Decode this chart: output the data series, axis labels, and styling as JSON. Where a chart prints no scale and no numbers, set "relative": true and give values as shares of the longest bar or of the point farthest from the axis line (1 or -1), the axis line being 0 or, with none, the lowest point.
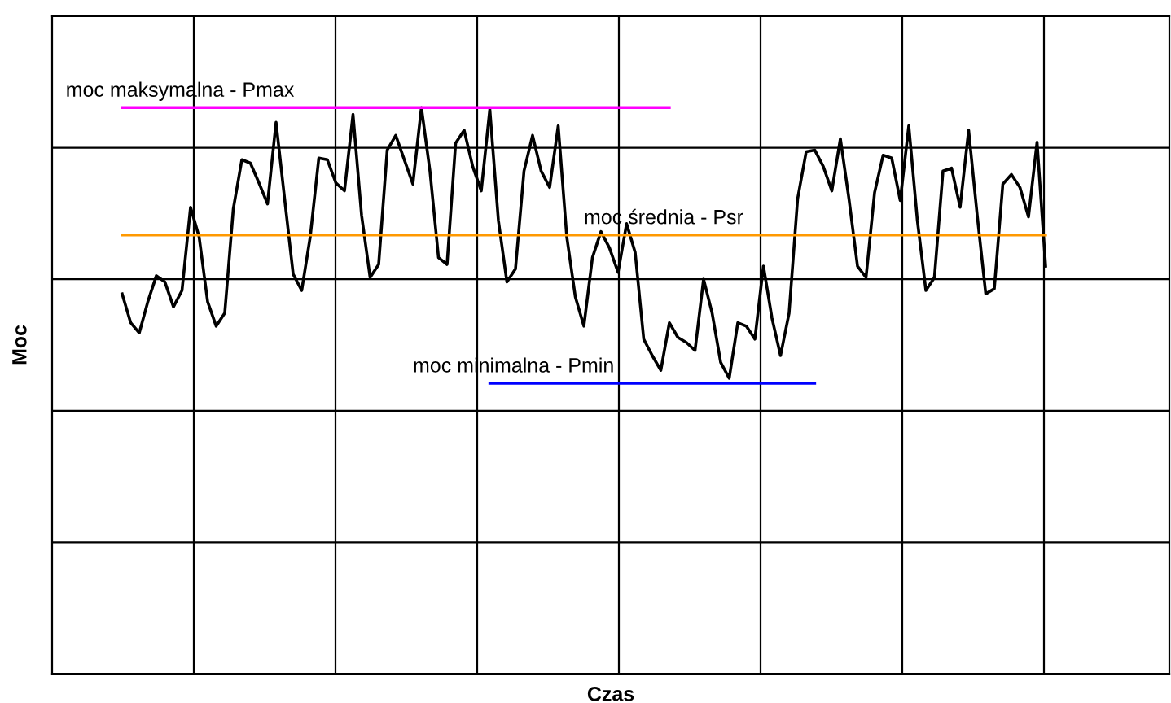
{
  "chart_data": {
    "type": "line",
    "relative": true,
    "xlabel": "Czas",
    "ylabel": "Moc",
    "grid": true,
    "categories": [
      null,
      null,
      null,
      null,
      null,
      null,
      null,
      null,
      null,
      null,
      null,
      null,
      null,
      null,
      null,
      null,
      null,
      null,
      null,
      null,
      null,
      null,
      null,
      null,
      null,
      null,
      null,
      null,
      null,
      null,
      null,
      null,
      null,
      null,
      null,
      null,
      null,
      null,
      null,
      null,
      null,
      null,
      null,
      null,
      null,
      null,
      null,
      null,
      null,
      null,
      null,
      null,
      null,
      null,
      null,
      null,
      null,
      null,
      null,
      null,
      null,
      null,
      null,
      null,
      null,
      null,
      null,
      null,
      null,
      null,
      null,
      null,
      null,
      null,
      null,
      null,
      null,
      null,
      null,
      null,
      null,
      null,
      null,
      null,
      null,
      null,
      null,
      null,
      null,
      null,
      null,
      null,
      null,
      null,
      null,
      null,
      null,
      null,
      null,
      null,
      null,
      null,
      null,
      null,
      null,
      null,
      null,
      null,
      null
    ],
    "series": [
      {
        "color": "#000000",
        "values": [
          0.671,
          0.62,
          0.602,
          0.657,
          0.703,
          0.692,
          0.648,
          0.677,
          0.824,
          0.772,
          0.657,
          0.614,
          0.637,
          0.821,
          0.908,
          0.902,
          0.867,
          0.83,
          0.974,
          0.839,
          0.706,
          0.677,
          0.772,
          0.911,
          0.908,
          0.867,
          0.853,
          0.988,
          0.81,
          0.7,
          0.723,
          0.925,
          0.951,
          0.908,
          0.865,
          1.0,
          0.888,
          0.735,
          0.723,
          0.937,
          0.96,
          0.896,
          0.853,
          0.997,
          0.801,
          0.692,
          0.715,
          0.888,
          0.951,
          0.888,
          0.859,
          0.968,
          0.772,
          0.666,
          0.614,
          0.735,
          0.781,
          0.752,
          0.709,
          0.795,
          0.744,
          0.591,
          0.562,
          0.536,
          0.62,
          0.594,
          0.585,
          0.571,
          0.697,
          0.637,
          0.55,
          0.522,
          0.62,
          0.614,
          0.591,
          0.72,
          0.628,
          0.562,
          0.637,
          0.839,
          0.922,
          0.925,
          0.896,
          0.853,
          0.945,
          0.839,
          0.72,
          0.7,
          0.85,
          0.916,
          0.911,
          0.836,
          0.968,
          0.801,
          0.677,
          0.7,
          0.888,
          0.893,
          0.824,
          0.96,
          0.81,
          0.671,
          0.68,
          0.865,
          0.882,
          0.859,
          0.807,
          0.939,
          0.72
        ]
      },
      {
        "name": "moc maksymalna - Pmax",
        "color": "#ff00ff",
        "values": [
          1,
          1,
          1,
          1,
          1,
          1,
          1,
          1,
          1,
          1,
          1,
          1,
          1,
          1,
          1,
          1,
          1,
          1,
          1,
          1,
          1,
          1,
          1,
          1,
          1,
          1,
          1,
          1,
          1,
          1,
          1,
          1,
          1,
          1,
          1,
          1,
          1,
          1,
          1,
          1,
          1,
          1,
          1,
          1,
          1,
          1,
          1,
          1,
          1,
          1,
          1,
          1,
          1,
          1,
          1,
          1,
          1,
          1,
          1,
          1,
          1,
          1,
          1,
          1,
          1,
          null,
          null,
          null,
          null,
          null,
          null,
          null,
          null,
          null,
          null,
          null,
          null,
          null,
          null,
          null,
          null,
          null,
          null,
          null,
          null,
          null,
          null,
          null,
          null,
          null,
          null,
          null,
          null,
          null,
          null,
          null,
          null,
          null,
          null,
          null,
          null,
          null,
          null,
          null,
          null,
          null,
          null,
          null,
          null
        ]
      },
      {
        "name": "moc średnia - Psr",
        "color": "#ff9900",
        "values": [
          0.775,
          0.775,
          0.775,
          0.775,
          0.775,
          0.775,
          0.775,
          0.775,
          0.775,
          0.775,
          0.775,
          0.775,
          0.775,
          0.775,
          0.775,
          0.775,
          0.775,
          0.775,
          0.775,
          0.775,
          0.775,
          0.775,
          0.775,
          0.775,
          0.775,
          0.775,
          0.775,
          0.775,
          0.775,
          0.775,
          0.775,
          0.775,
          0.775,
          0.775,
          0.775,
          0.775,
          0.775,
          0.775,
          0.775,
          0.775,
          0.775,
          0.775,
          0.775,
          0.775,
          0.775,
          0.775,
          0.775,
          0.775,
          0.775,
          0.775,
          0.775,
          0.775,
          0.775,
          0.775,
          0.775,
          0.775,
          0.775,
          0.775,
          0.775,
          0.775,
          0.775,
          0.775,
          0.775,
          0.775,
          0.775,
          0.775,
          0.775,
          0.775,
          0.775,
          0.775,
          0.775,
          0.775,
          0.775,
          0.775,
          0.775,
          0.775,
          0.775,
          0.775,
          0.775,
          0.775,
          0.775,
          0.775,
          0.775,
          0.775,
          0.775,
          0.775,
          0.775,
          0.775,
          0.775,
          0.775,
          0.775,
          0.775,
          0.775,
          0.775,
          0.775,
          0.775,
          0.775,
          0.775,
          0.775,
          0.775,
          0.775,
          0.775,
          0.775,
          0.775,
          0.775,
          0.775,
          0.775,
          0.775,
          0.775
        ]
      },
      {
        "name": "moc minimalna - Pmin",
        "color": "#0000ff",
        "values": [
          null,
          null,
          null,
          null,
          null,
          null,
          null,
          null,
          null,
          null,
          null,
          null,
          null,
          null,
          null,
          null,
          null,
          null,
          null,
          null,
          null,
          null,
          null,
          null,
          null,
          null,
          null,
          null,
          null,
          null,
          null,
          null,
          null,
          null,
          null,
          null,
          null,
          null,
          null,
          null,
          null,
          null,
          null,
          0.513,
          0.513,
          0.513,
          0.513,
          0.513,
          0.513,
          0.513,
          0.513,
          0.513,
          0.513,
          0.513,
          0.513,
          0.513,
          0.513,
          0.513,
          0.513,
          0.513,
          0.513,
          0.513,
          0.513,
          0.513,
          0.513,
          0.513,
          0.513,
          0.513,
          0.513,
          0.513,
          0.513,
          0.513,
          0.513,
          0.513,
          0.513,
          0.513,
          0.513,
          0.513,
          0.513,
          0.513,
          0.513,
          0.513,
          null,
          null,
          null,
          null,
          null,
          null,
          null,
          null,
          null,
          null,
          null,
          null,
          null,
          null,
          null,
          null,
          null,
          null,
          null,
          null,
          null,
          null,
          null,
          null,
          null,
          null,
          null
        ]
      }
    ]
  }
}
